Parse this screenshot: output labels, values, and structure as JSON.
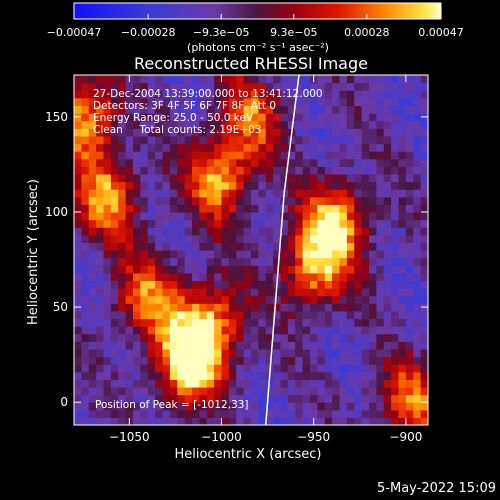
{
  "chart_data": {
    "type": "heatmap",
    "title": "Reconstructed RHESSI Image",
    "xlabel": "Heliocentric X (arcsec)",
    "ylabel": "Heliocentric Y (arcsec)",
    "xlim": [
      -1080,
      -888
    ],
    "ylim": [
      -12,
      172
    ],
    "x_ticks": [
      -1050,
      -1000,
      -950,
      -900
    ],
    "x_tick_labels": [
      "−1050",
      "−1000",
      "−950",
      "−900"
    ],
    "y_ticks": [
      0,
      50,
      100,
      150
    ],
    "y_tick_labels": [
      "0",
      "50",
      "100",
      "150"
    ],
    "colorbar": {
      "vmin": -0.00047,
      "vmax": 0.00047,
      "ticks": [
        -0.00047,
        -0.00028,
        -9.3e-05,
        9.3e-05,
        0.00028,
        0.00047
      ],
      "tick_labels": [
        "−0.00047",
        "−0.00028",
        "−9.3e−05",
        "9.3e−05",
        "0.00028",
        "0.00047"
      ],
      "units_label": "(photons cm⁻² s⁻¹ asec⁻²)"
    },
    "annotations": [
      "27-Dec-2004 13:39:00.000 to 13:41:12.000",
      "Detectors: 3F 4F 5F 6F 7F 8F, Att 0",
      "Energy Range: 25.0 - 50.0 keV",
      "Clean     Total counts: 2.19E+03"
    ],
    "peak_label": "Position of Peak = [-1012,33]",
    "peak_position": [
      -1012,
      33
    ],
    "limb_line": [
      [
        -976,
        -12
      ],
      [
        -966,
        110
      ],
      [
        -958,
        172
      ]
    ],
    "bright_sources": [
      {
        "x": -1018,
        "y": 20,
        "level": 0.95
      },
      {
        "x": -1007,
        "y": 40,
        "level": 0.9
      },
      {
        "x": -1001,
        "y": 118,
        "level": 0.85
      },
      {
        "x": -1062,
        "y": 108,
        "level": 0.8
      },
      {
        "x": -1074,
        "y": 150,
        "level": 0.85
      },
      {
        "x": -938,
        "y": 95,
        "level": 0.9
      },
      {
        "x": -950,
        "y": 70,
        "level": 0.8
      },
      {
        "x": -1040,
        "y": 55,
        "level": 0.7
      },
      {
        "x": -984,
        "y": 150,
        "level": 0.65
      },
      {
        "x": -898,
        "y": 0,
        "level": 0.7
      }
    ]
  },
  "timestamp": "5-May-2022 15:09"
}
